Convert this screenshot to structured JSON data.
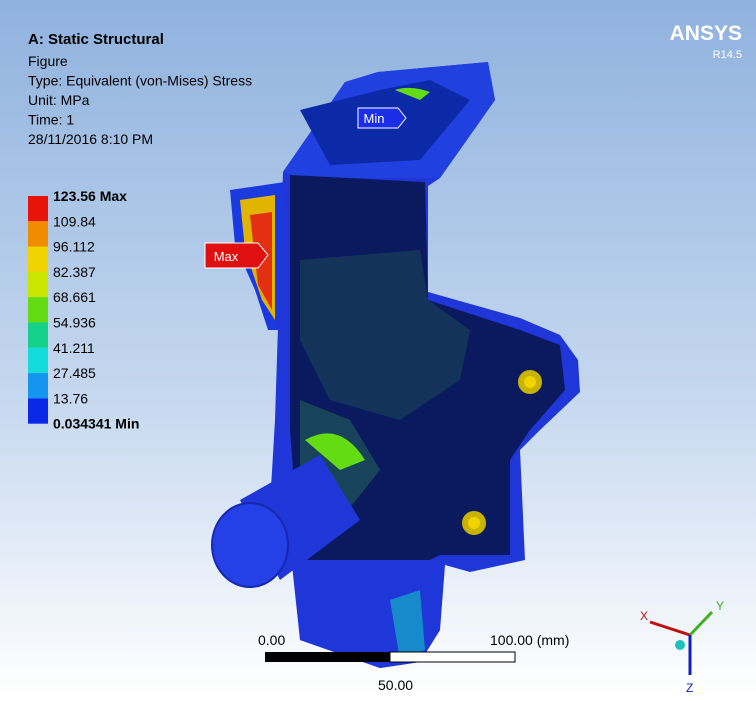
{
  "header": {
    "title": "A: Static Structural",
    "lines": [
      "Figure",
      "Type: Equivalent (von-Mises) Stress",
      "Unit: MPa",
      "Time: 1",
      "28/11/2016 8:10 PM"
    ]
  },
  "legend": {
    "labels": [
      "123.56 Max",
      "109.84",
      "96.112",
      "82.387",
      "68.661",
      "54.936",
      "41.211",
      "27.485",
      "13.76",
      "0.034341 Min"
    ],
    "colors": [
      "#e8140c",
      "#f08c00",
      "#f0d400",
      "#c8e600",
      "#64dc14",
      "#14d28c",
      "#14dcdc",
      "#1496f0",
      "#0a28e6"
    ]
  },
  "logo": {
    "name": "ANSYS",
    "version": "R14.5"
  },
  "probes": {
    "max": "Max",
    "min": "Min"
  },
  "scale": {
    "start": "0.00",
    "mid": "50.00",
    "end": "100.00 (mm)"
  },
  "triad": {
    "x": "X",
    "y": "Y",
    "z": "Z"
  }
}
